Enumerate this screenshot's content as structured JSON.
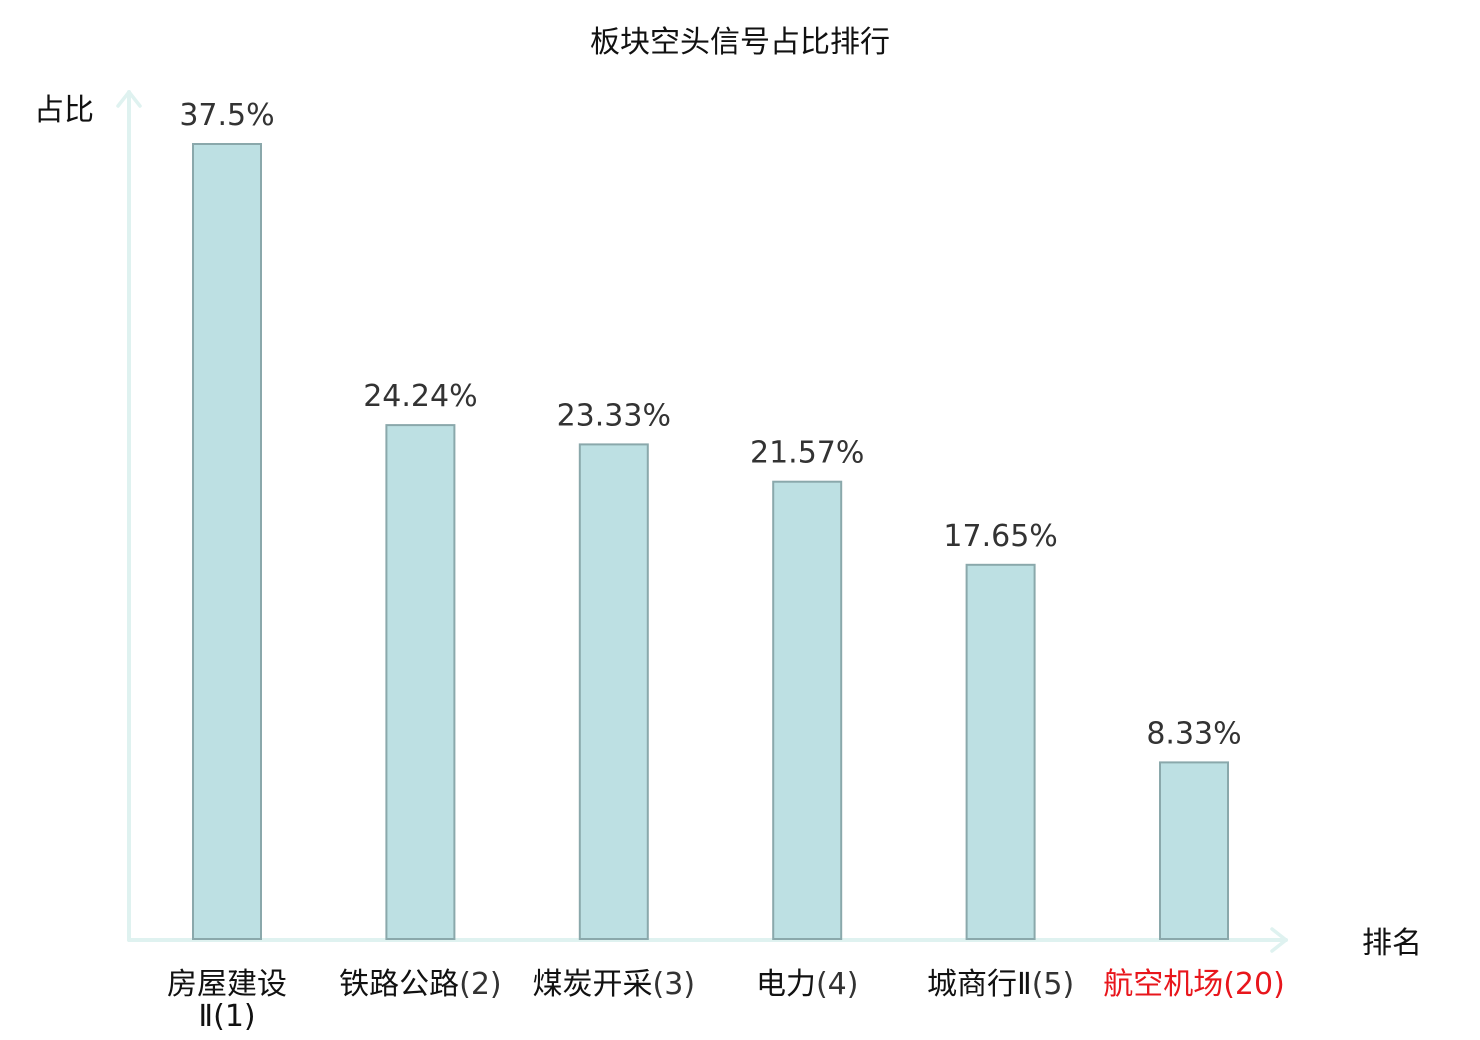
{
  "chart_data": {
    "type": "bar",
    "title": "板块空头信号占比排行",
    "ylabel": "占比",
    "xlabel": "排名",
    "ylim": [
      0,
      37.5
    ],
    "grid": false,
    "legend": "none",
    "categories": [
      {
        "name": "房屋建设Ⅱ",
        "rank": "(1)",
        "highlight": false
      },
      {
        "name": "铁路公路",
        "rank": "(2)",
        "highlight": false
      },
      {
        "name": "煤炭开采",
        "rank": "(3)",
        "highlight": false
      },
      {
        "name": "电力",
        "rank": "(4)",
        "highlight": false
      },
      {
        "name": "城商行Ⅱ",
        "rank": "(5)",
        "highlight": false
      },
      {
        "name": "航空机场",
        "rank": "(20)",
        "highlight": true
      }
    ],
    "values": [
      37.5,
      24.24,
      23.33,
      21.57,
      17.65,
      8.33
    ],
    "value_labels": [
      "37.5%",
      "24.24%",
      "23.33%",
      "21.57%",
      "17.65%",
      "8.33%"
    ]
  },
  "colors": {
    "bar_fill": "#bde0e3",
    "bar_stroke": "#8aa8ab",
    "axis": "#dff2f0",
    "highlight": "#e8161c"
  }
}
